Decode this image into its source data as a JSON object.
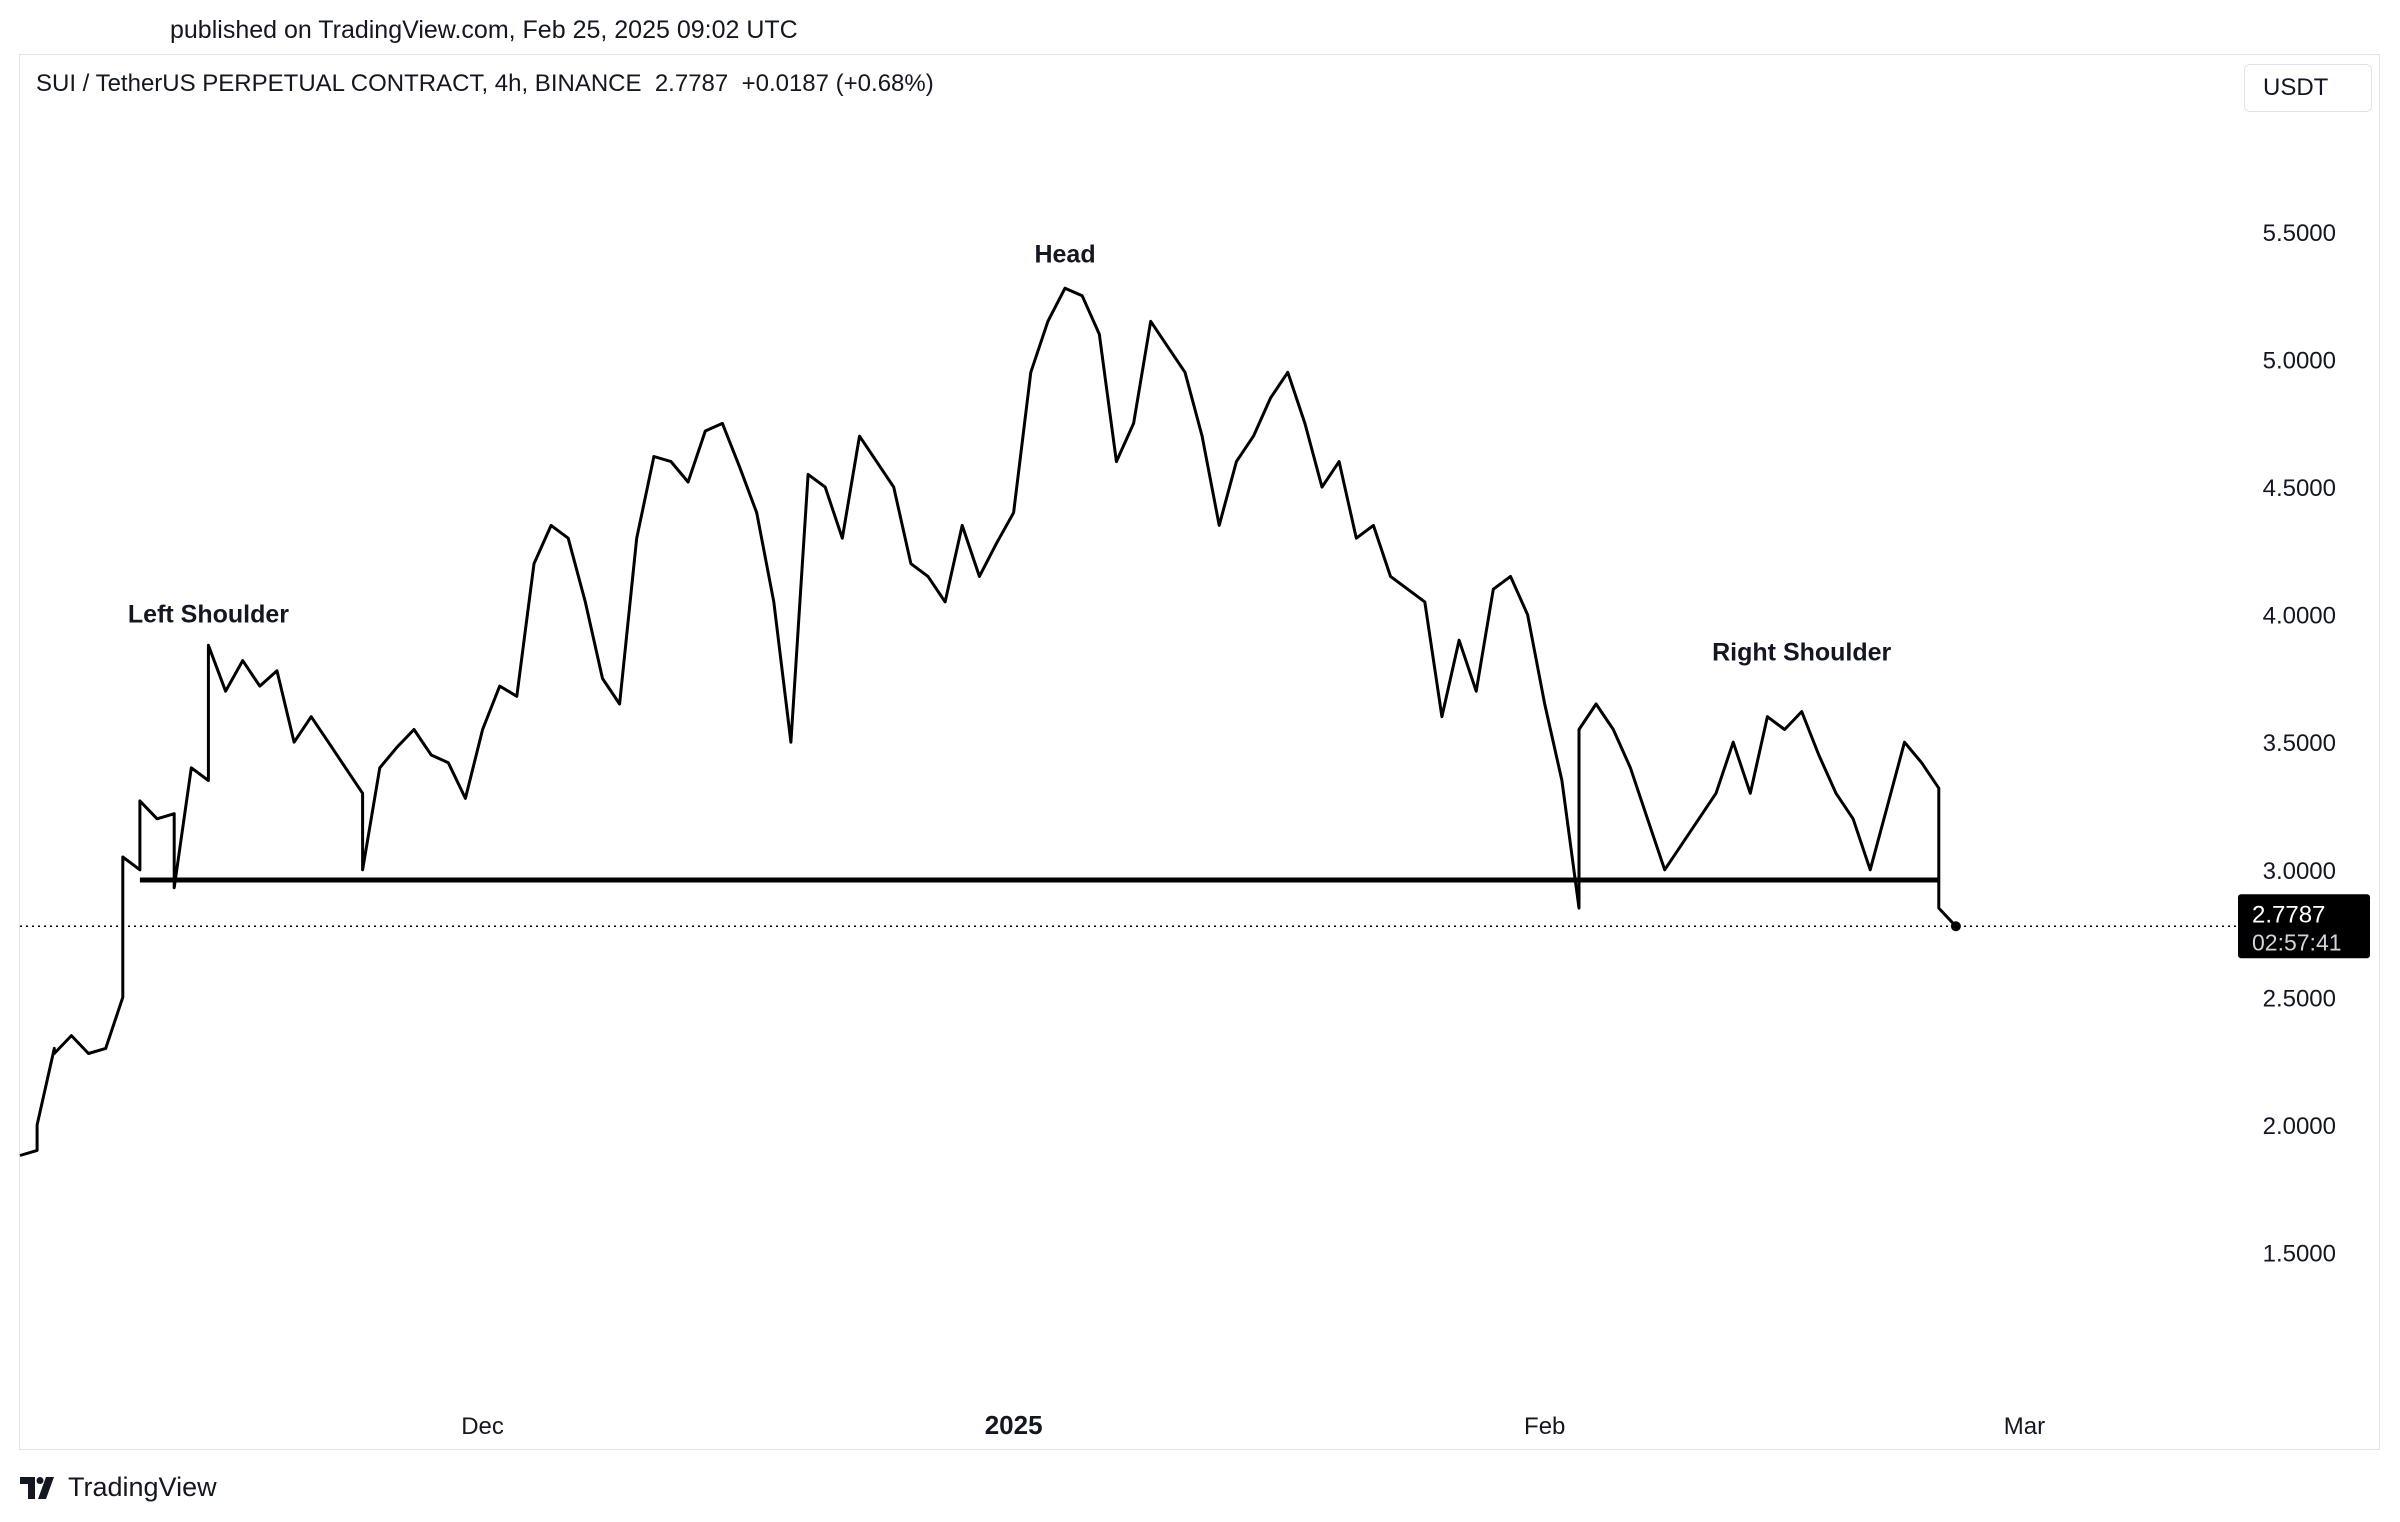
{
  "header": {
    "published": "published on TradingView.com, Feb 25, 2025 09:02 UTC",
    "symbol_line": "SUI / TetherUS PERPETUAL CONTRACT, 4h, BINANCE  2.7787  +0.0187 (+0.68%)",
    "currency": "USDT"
  },
  "footer": {
    "brand": "TradingView"
  },
  "colors": {
    "line": "#000000",
    "background": "#ffffff",
    "axis_text": "#131722",
    "price_label_bg": "#000000",
    "price_label_text": "#ffffff"
  },
  "chart_data": {
    "type": "line",
    "title": "SUI / TetherUS PERPETUAL CONTRACT, 4h, BINANCE",
    "last_price": "2.7787",
    "change": "+0.0187 (+0.68%)",
    "countdown": "02:57:41",
    "ylim": [
      1.0,
      5.9
    ],
    "y_ticks": [
      "5.5000",
      "5.0000",
      "4.5000",
      "4.0000",
      "3.5000",
      "3.0000",
      "2.5000",
      "2.0000",
      "1.5000"
    ],
    "x_ticks": [
      {
        "label": "Dec",
        "date": "2024-12-01",
        "bold": false
      },
      {
        "label": "2025",
        "date": "2025-01-01",
        "bold": true
      },
      {
        "label": "Feb",
        "date": "2025-02-01",
        "bold": false
      },
      {
        "label": "Mar",
        "date": "2025-03-01",
        "bold": false
      }
    ],
    "xlim": [
      "2024-11-04",
      "2025-03-13"
    ],
    "neckline": {
      "value": 2.96,
      "start": "2024-11-11",
      "end": "2025-02-24"
    },
    "annotations": [
      {
        "text": "Left Shoulder",
        "date": "2024-11-15",
        "value": 3.97
      },
      {
        "text": "Head",
        "date": "2025-01-04",
        "value": 5.38
      },
      {
        "text": "Right Shoulder",
        "date": "2025-02-16",
        "value": 3.82
      }
    ],
    "series": [
      {
        "points": [
          [
            "2024-11-04",
            1.88
          ],
          [
            "2024-11-05",
            1.9
          ],
          [
            "2024-11-05",
            2.0
          ],
          [
            "2024-11-06",
            2.3
          ],
          [
            "2024-11-06",
            2.28
          ],
          [
            "2024-11-07",
            2.35
          ],
          [
            "2024-11-08",
            2.28
          ],
          [
            "2024-11-09",
            2.3
          ],
          [
            "2024-11-10",
            2.5
          ],
          [
            "2024-11-10",
            3.05
          ],
          [
            "2024-11-11",
            3.0
          ],
          [
            "2024-11-11",
            3.27
          ],
          [
            "2024-11-12",
            3.2
          ],
          [
            "2024-11-13",
            3.22
          ],
          [
            "2024-11-13",
            2.93
          ],
          [
            "2024-11-14",
            3.4
          ],
          [
            "2024-11-15",
            3.35
          ],
          [
            "2024-11-15",
            3.88
          ],
          [
            "2024-11-16",
            3.7
          ],
          [
            "2024-11-17",
            3.82
          ],
          [
            "2024-11-18",
            3.72
          ],
          [
            "2024-11-19",
            3.78
          ],
          [
            "2024-11-20",
            3.5
          ],
          [
            "2024-11-21",
            3.6
          ],
          [
            "2024-11-22",
            3.5
          ],
          [
            "2024-11-23",
            3.4
          ],
          [
            "2024-11-24",
            3.3
          ],
          [
            "2024-11-24",
            3.0
          ],
          [
            "2024-11-25",
            3.4
          ],
          [
            "2024-11-26",
            3.48
          ],
          [
            "2024-11-27",
            3.55
          ],
          [
            "2024-11-28",
            3.45
          ],
          [
            "2024-11-29",
            3.42
          ],
          [
            "2024-11-30",
            3.28
          ],
          [
            "2024-12-01",
            3.55
          ],
          [
            "2024-12-02",
            3.72
          ],
          [
            "2024-12-03",
            3.68
          ],
          [
            "2024-12-04",
            4.2
          ],
          [
            "2024-12-05",
            4.35
          ],
          [
            "2024-12-06",
            4.3
          ],
          [
            "2024-12-07",
            4.05
          ],
          [
            "2024-12-08",
            3.75
          ],
          [
            "2024-12-09",
            3.65
          ],
          [
            "2024-12-10",
            4.3
          ],
          [
            "2024-12-11",
            4.62
          ],
          [
            "2024-12-12",
            4.6
          ],
          [
            "2024-12-13",
            4.52
          ],
          [
            "2024-12-14",
            4.72
          ],
          [
            "2024-12-15",
            4.75
          ],
          [
            "2024-12-16",
            4.58
          ],
          [
            "2024-12-17",
            4.4
          ],
          [
            "2024-12-18",
            4.05
          ],
          [
            "2024-12-19",
            3.5
          ],
          [
            "2024-12-20",
            4.55
          ],
          [
            "2024-12-21",
            4.5
          ],
          [
            "2024-12-22",
            4.3
          ],
          [
            "2024-12-23",
            4.7
          ],
          [
            "2024-12-24",
            4.6
          ],
          [
            "2024-12-25",
            4.5
          ],
          [
            "2024-12-26",
            4.2
          ],
          [
            "2024-12-27",
            4.15
          ],
          [
            "2024-12-28",
            4.05
          ],
          [
            "2024-12-29",
            4.35
          ],
          [
            "2024-12-30",
            4.15
          ],
          [
            "2024-12-31",
            4.28
          ],
          [
            "2025-01-01",
            4.4
          ],
          [
            "2025-01-02",
            4.95
          ],
          [
            "2025-01-03",
            5.15
          ],
          [
            "2025-01-04",
            5.28
          ],
          [
            "2025-01-05",
            5.25
          ],
          [
            "2025-01-06",
            5.1
          ],
          [
            "2025-01-07",
            4.6
          ],
          [
            "2025-01-08",
            4.75
          ],
          [
            "2025-01-09",
            5.15
          ],
          [
            "2025-01-10",
            5.05
          ],
          [
            "2025-01-11",
            4.95
          ],
          [
            "2025-01-12",
            4.7
          ],
          [
            "2025-01-13",
            4.35
          ],
          [
            "2025-01-14",
            4.6
          ],
          [
            "2025-01-15",
            4.7
          ],
          [
            "2025-01-16",
            4.85
          ],
          [
            "2025-01-17",
            4.95
          ],
          [
            "2025-01-18",
            4.75
          ],
          [
            "2025-01-19",
            4.5
          ],
          [
            "2025-01-20",
            4.6
          ],
          [
            "2025-01-21",
            4.3
          ],
          [
            "2025-01-22",
            4.35
          ],
          [
            "2025-01-23",
            4.15
          ],
          [
            "2025-01-24",
            4.1
          ],
          [
            "2025-01-25",
            4.05
          ],
          [
            "2025-01-26",
            3.6
          ],
          [
            "2025-01-27",
            3.9
          ],
          [
            "2025-01-28",
            3.7
          ],
          [
            "2025-01-29",
            4.1
          ],
          [
            "2025-01-30",
            4.15
          ],
          [
            "2025-01-31",
            4.0
          ],
          [
            "2025-02-01",
            3.65
          ],
          [
            "2025-02-02",
            3.35
          ],
          [
            "2025-02-03",
            2.85
          ],
          [
            "2025-02-03",
            3.55
          ],
          [
            "2025-02-04",
            3.65
          ],
          [
            "2025-02-05",
            3.55
          ],
          [
            "2025-02-06",
            3.4
          ],
          [
            "2025-02-07",
            3.2
          ],
          [
            "2025-02-08",
            3.0
          ],
          [
            "2025-02-09",
            3.1
          ],
          [
            "2025-02-10",
            3.2
          ],
          [
            "2025-02-11",
            3.3
          ],
          [
            "2025-02-12",
            3.5
          ],
          [
            "2025-02-13",
            3.3
          ],
          [
            "2025-02-14",
            3.6
          ],
          [
            "2025-02-15",
            3.55
          ],
          [
            "2025-02-16",
            3.62
          ],
          [
            "2025-02-17",
            3.45
          ],
          [
            "2025-02-18",
            3.3
          ],
          [
            "2025-02-19",
            3.2
          ],
          [
            "2025-02-20",
            3.0
          ],
          [
            "2025-02-21",
            3.25
          ],
          [
            "2025-02-22",
            3.5
          ],
          [
            "2025-02-23",
            3.42
          ],
          [
            "2025-02-24",
            3.32
          ],
          [
            "2025-02-24",
            2.85
          ],
          [
            "2025-02-25",
            2.7787
          ]
        ]
      }
    ]
  }
}
